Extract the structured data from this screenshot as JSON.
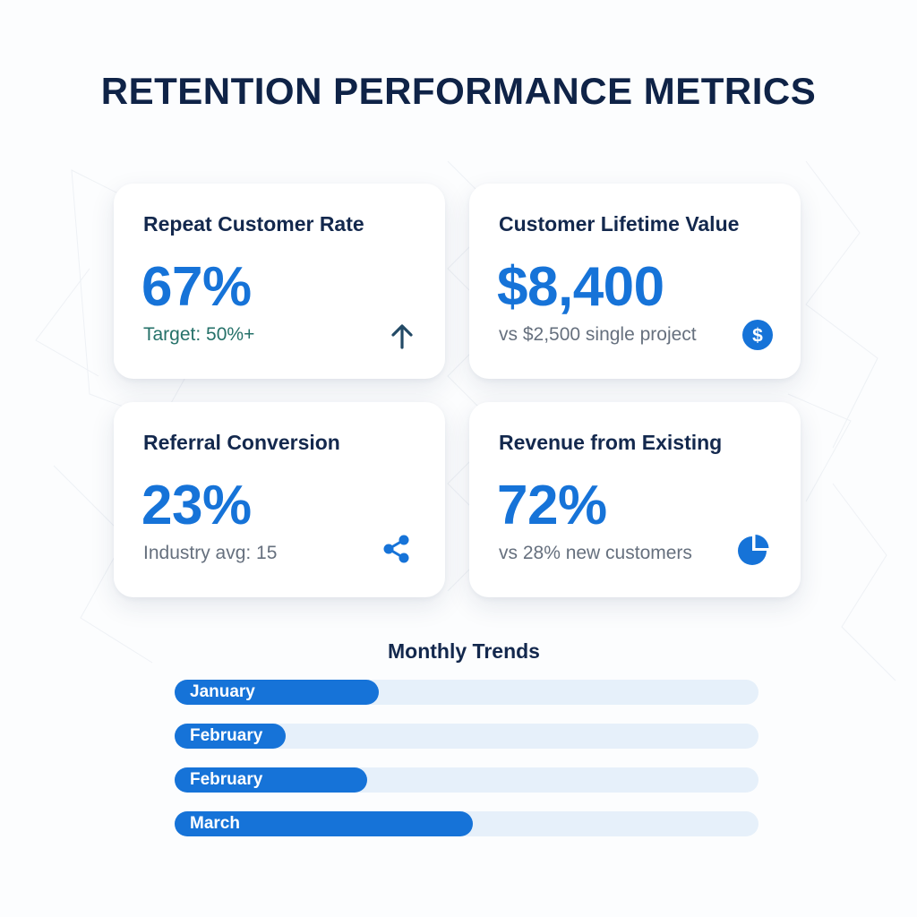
{
  "title": "RETENTION PERFORMANCE METRICS",
  "metrics": [
    {
      "label": "Repeat Customer Rate",
      "value": "67%",
      "subtext": "Target: 50%+",
      "icon": "arrow-up-icon"
    },
    {
      "label": "Customer Lifetime Value",
      "value": "$8,400",
      "subtext": "vs $2,500 single project",
      "icon": "dollar-icon"
    },
    {
      "label": "Referral Conversion",
      "value": "23%",
      "subtext": "Industry avg: 15",
      "icon": "share-icon"
    },
    {
      "label": "Revenue from Existing",
      "value": "72%",
      "subtext": "vs 28% new customers",
      "icon": "pie-chart-icon"
    }
  ],
  "trends": {
    "title": "Monthly Trends",
    "bars": [
      {
        "label": "January",
        "fill_fraction": 0.35
      },
      {
        "label": "February",
        "fill_fraction": 0.19
      },
      {
        "label": "February",
        "fill_fraction": 0.33
      },
      {
        "label": "March",
        "fill_fraction": 0.51
      }
    ]
  },
  "colors": {
    "accent": "#1673d8",
    "title": "#0f2347",
    "target_text": "#257169",
    "track": "#e6f0fa"
  }
}
